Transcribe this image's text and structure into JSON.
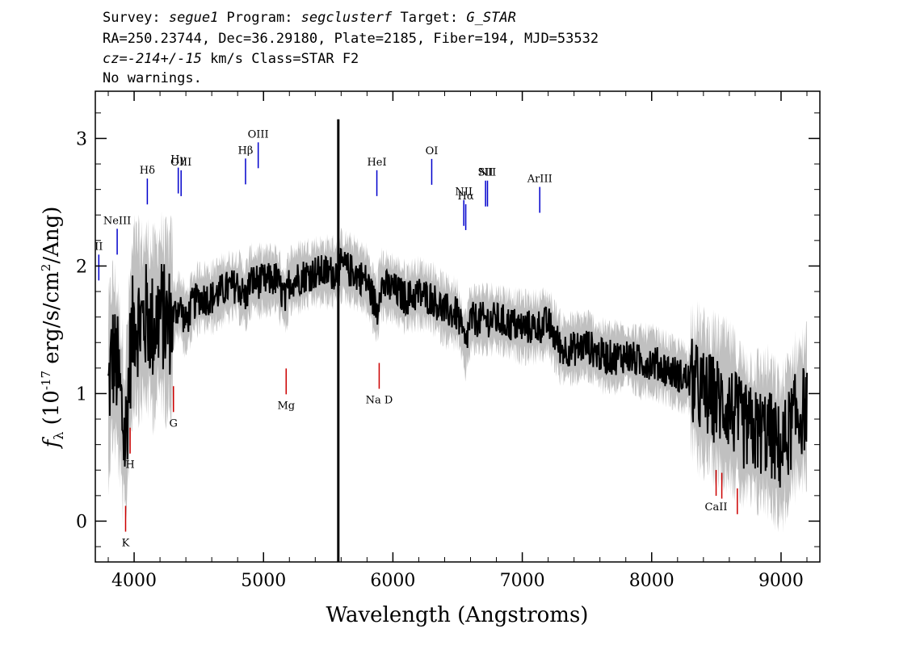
{
  "header": {
    "line1": {
      "a": "Survey: ",
      "survey": "segue1",
      "b": " Program: ",
      "program": "segclusterf",
      "c": " Target: ",
      "target": "G_STAR"
    },
    "line2": "RA=250.23744, Dec=36.29180, Plate=2185, Fiber=194, MJD=53532",
    "line3": {
      "cz": "cz=-214+/-15",
      "rest": " km/s Class=STAR F2"
    },
    "line4": "No warnings."
  },
  "chart_data": {
    "type": "line",
    "xlabel": "Wavelength (Angstroms)",
    "ylabel": "f_λ (10^-17 erg/s/cm^2/Ang)",
    "ylabel_parts": {
      "f": "f",
      "sub": "λ",
      "pre": " (10",
      "exp1": "-17",
      "mid": " erg/s/cm",
      "exp2": "2",
      "post": "/Ang)"
    },
    "xlim": [
      3700,
      9300
    ],
    "ylim": [
      -0.32,
      3.37
    ],
    "xticks": [
      4000,
      5000,
      6000,
      7000,
      8000,
      9000
    ],
    "yticks": [
      0,
      1,
      2,
      3
    ],
    "grid": false,
    "series": [
      {
        "role": "spectrum",
        "color": "#000000",
        "x": [
          3800,
          3830,
          3870,
          3930,
          3970,
          4000,
          4050,
          4100,
          4150,
          4200,
          4250,
          4300,
          4350,
          4400,
          4450,
          4500,
          4600,
          4700,
          4800,
          4860,
          4900,
          5000,
          5100,
          5170,
          5200,
          5300,
          5400,
          5500,
          5560,
          5600,
          5700,
          5800,
          5880,
          5900,
          6000,
          6100,
          6200,
          6300,
          6400,
          6500,
          6560,
          6600,
          6700,
          6800,
          6900,
          7000,
          7100,
          7200,
          7300,
          7400,
          7500,
          7600,
          7700,
          7800,
          7900,
          8000,
          8100,
          8200,
          8300,
          8400,
          8500,
          8600,
          8700,
          8800,
          8900,
          9000,
          9100,
          9200
        ],
        "y": [
          1.0,
          1.3,
          1.2,
          0.6,
          1.3,
          1.6,
          1.55,
          1.6,
          1.5,
          1.65,
          1.55,
          1.6,
          1.7,
          1.55,
          1.7,
          1.75,
          1.75,
          1.82,
          1.85,
          1.75,
          1.88,
          1.88,
          1.9,
          1.72,
          1.88,
          1.92,
          1.95,
          1.95,
          1.95,
          2.0,
          1.95,
          1.88,
          1.65,
          1.85,
          1.82,
          1.75,
          1.78,
          1.75,
          1.65,
          1.62,
          1.38,
          1.58,
          1.58,
          1.58,
          1.55,
          1.52,
          1.52,
          1.55,
          1.35,
          1.35,
          1.38,
          1.3,
          1.28,
          1.3,
          1.25,
          1.25,
          1.2,
          1.15,
          1.1,
          1.0,
          0.95,
          0.9,
          0.75,
          0.7,
          0.7,
          0.55,
          0.8,
          0.9
        ]
      }
    ],
    "sky_line": {
      "x": 5578,
      "y_top": 3.15
    },
    "emission_lines": [
      {
        "label": "II",
        "x": 3727,
        "color": "#0000cc"
      },
      {
        "label": "NeIII",
        "x": 3869,
        "color": "#0000cc"
      },
      {
        "label": "Hδ",
        "x": 4102,
        "color": "#0000cc"
      },
      {
        "label": "Hγ",
        "x": 4341,
        "color": "#0000cc"
      },
      {
        "label": "OIII",
        "x": 4363,
        "color": "#0000cc"
      },
      {
        "label": "Hβ",
        "x": 4861,
        "color": "#0000cc"
      },
      {
        "label": "OIII",
        "x": 4959,
        "color": "#0000cc"
      },
      {
        "label": "HeI",
        "x": 5876,
        "color": "#0000cc"
      },
      {
        "label": "OI",
        "x": 6300,
        "color": "#0000cc"
      },
      {
        "label": "NII",
        "x": 6548,
        "color": "#0000cc"
      },
      {
        "label": "Hα",
        "x": 6563,
        "color": "#0000cc"
      },
      {
        "label": "SII",
        "x": 6716,
        "color": "#0000cc"
      },
      {
        "label": "NII",
        "x": 6731,
        "color": "#0000cc"
      },
      {
        "label": "ArIII",
        "x": 7135,
        "color": "#0000cc"
      }
    ],
    "absorption_lines": [
      {
        "label": "K",
        "x": 3934,
        "color": "#cc0000"
      },
      {
        "label": "H",
        "x": 3969,
        "color": "#cc0000"
      },
      {
        "label": "G",
        "x": 4304,
        "color": "#cc0000"
      },
      {
        "label": "Mg",
        "x": 5175,
        "color": "#cc0000"
      },
      {
        "label": "Na D",
        "x": 5894,
        "color": "#cc0000"
      },
      {
        "label": "CaII",
        "x": 8498,
        "color": "#cc0000"
      },
      {
        "label": "",
        "x": 8542,
        "color": "#cc0000"
      },
      {
        "label": "",
        "x": 8662,
        "color": "#cc0000"
      }
    ],
    "error_band_color": "#c0c0c0",
    "spectrum_color": "#000000"
  }
}
